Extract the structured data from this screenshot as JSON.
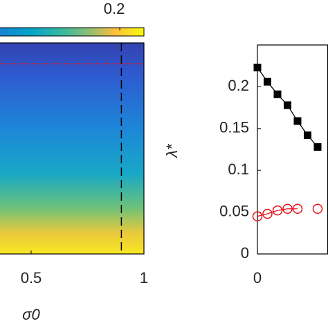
{
  "chart_data": [
    {
      "type": "heatmap",
      "xlabel": "σ0",
      "xlim": [
        0,
        1
      ],
      "xticks": [
        0.5,
        1
      ],
      "clim": [
        0,
        0.224
      ],
      "cticks": [
        0.2
      ],
      "vline": 0.9
    },
    {
      "type": "line",
      "ylabel": "λ*",
      "xlim": [
        0,
        7
      ],
      "xticks": [
        0
      ],
      "ylim": [
        0,
        0.25
      ],
      "yticks": [
        0,
        0.05,
        0.1,
        0.15,
        0.2
      ],
      "x": [
        0,
        1,
        2,
        3,
        4,
        5,
        6
      ],
      "series": [
        {
          "color": "#000000",
          "marker": "square",
          "values": [
            0.223,
            0.206,
            0.191,
            0.178,
            0.159,
            0.142,
            0.128
          ]
        },
        {
          "color": "#e8141c",
          "marker": "circle",
          "values": [
            0.045,
            0.048,
            0.052,
            0.054,
            0.054,
            null,
            0.054
          ]
        }
      ]
    }
  ]
}
